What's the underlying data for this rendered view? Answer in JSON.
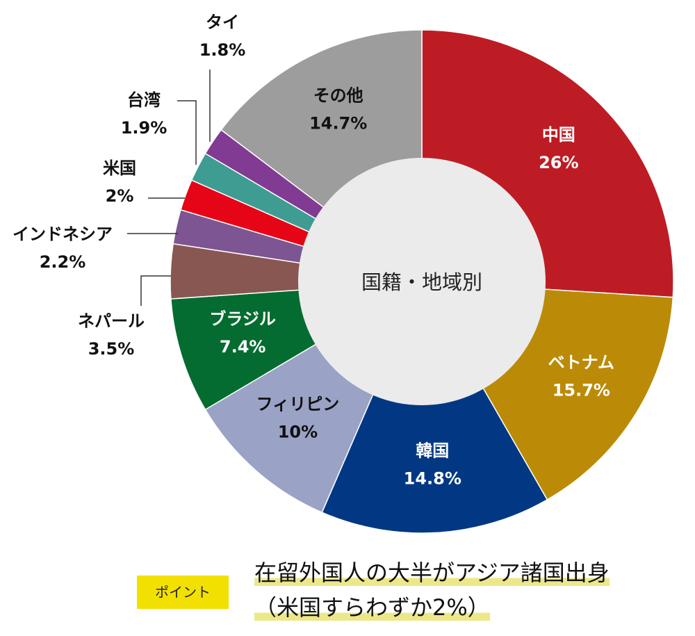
{
  "chart_data": {
    "type": "pie",
    "center_label": "国籍・地域別",
    "slices": [
      {
        "name": "中国",
        "value": 26,
        "value_label": "26%",
        "color": "#be1c24",
        "text_color": "#ffffff"
      },
      {
        "name": "ベトナム",
        "value": 15.7,
        "value_label": "15.7%",
        "color": "#bb8b08",
        "text_color": "#ffffff"
      },
      {
        "name": "韓国",
        "value": 14.8,
        "value_label": "14.8%",
        "color": "#023883",
        "text_color": "#ffffff"
      },
      {
        "name": "フィリピン",
        "value": 10,
        "value_label": "10%",
        "color": "#9aa2c6",
        "text_color": "#111111"
      },
      {
        "name": "ブラジル",
        "value": 7.4,
        "value_label": "7.4%",
        "color": "#056c31",
        "text_color": "#ffffff"
      },
      {
        "name": "ネパール",
        "value": 3.5,
        "value_label": "3.5%",
        "color": "#895751",
        "text_color": "#111111"
      },
      {
        "name": "インドネシア",
        "value": 2.2,
        "value_label": "2.2%",
        "color": "#7c5592",
        "text_color": "#111111"
      },
      {
        "name": "米国",
        "value": 2,
        "value_label": "2%",
        "color": "#e60516",
        "text_color": "#111111"
      },
      {
        "name": "台湾",
        "value": 1.9,
        "value_label": "1.9%",
        "color": "#3e9c93",
        "text_color": "#111111"
      },
      {
        "name": "タイ",
        "value": 1.8,
        "value_label": "1.8%",
        "color": "#813b93",
        "text_color": "#111111"
      },
      {
        "name": "その他",
        "value": 14.7,
        "value_label": "14.7%",
        "color": "#9d9d9d",
        "text_color": "#111111"
      }
    ]
  },
  "footer": {
    "badge": "ポイント",
    "headline_line1": "在留外国人の大半がアジア諸国出身",
    "headline_line2": "（米国すらわずか2%）"
  }
}
